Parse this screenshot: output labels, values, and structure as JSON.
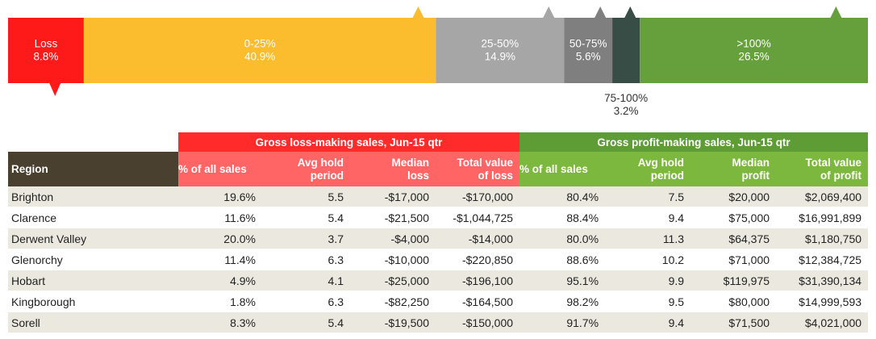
{
  "chart_data": {
    "type": "bar",
    "orientation": "horizontal-stacked",
    "segments": [
      {
        "label": "Loss",
        "value_text": "8.8%",
        "value": 8.8,
        "color": "#ff1a1a",
        "marker": "below"
      },
      {
        "label": "0-25%",
        "value_text": "40.9%",
        "value": 40.9,
        "color": "#fbbd2e",
        "marker": "above"
      },
      {
        "label": "25-50%",
        "value_text": "14.9%",
        "value": 14.9,
        "color": "#a6a6a6",
        "marker": "above"
      },
      {
        "label": "50-75%",
        "value_text": "5.6%",
        "value": 5.6,
        "color": "#7f7f7f",
        "marker": "above"
      },
      {
        "label": "75-100%",
        "value_text": "3.2%",
        "value": 3.2,
        "color": "#374d46",
        "marker": "above",
        "label_outside": true
      },
      {
        "label": ">100%",
        "value_text": "26.5%",
        "value": 26.5,
        "color": "#66a03c",
        "marker": "above"
      }
    ]
  },
  "table": {
    "loss_group_title": "Gross loss-making sales, Jun-15 qtr",
    "profit_group_title": "Gross profit-making sales, Jun-15 qtr",
    "region_header": "Region",
    "loss_headers": [
      [
        "% of all sales"
      ],
      [
        "Avg  hold",
        "period"
      ],
      [
        "Median",
        "loss"
      ],
      [
        "Total value",
        "of loss"
      ]
    ],
    "profit_headers": [
      [
        "% of all sales"
      ],
      [
        "Avg  hold",
        "period"
      ],
      [
        "Median",
        "profit"
      ],
      [
        "Total value",
        "of profit"
      ]
    ],
    "rows": [
      {
        "region": "Brighton",
        "loss_pct": "19.6%",
        "loss_hold": "5.5",
        "loss_median": "-$17,000",
        "loss_total": "-$170,000",
        "profit_pct": "80.4%",
        "profit_hold": "7.5",
        "profit_median": "$20,000",
        "profit_total": "$2,069,400"
      },
      {
        "region": "Clarence",
        "loss_pct": "11.6%",
        "loss_hold": "5.4",
        "loss_median": "-$21,500",
        "loss_total": "-$1,044,725",
        "profit_pct": "88.4%",
        "profit_hold": "9.4",
        "profit_median": "$75,000",
        "profit_total": "$16,991,899"
      },
      {
        "region": "Derwent Valley",
        "loss_pct": "20.0%",
        "loss_hold": "3.7",
        "loss_median": "-$4,000",
        "loss_total": "-$14,000",
        "profit_pct": "80.0%",
        "profit_hold": "11.3",
        "profit_median": "$64,375",
        "profit_total": "$1,180,750"
      },
      {
        "region": "Glenorchy",
        "loss_pct": "11.4%",
        "loss_hold": "6.3",
        "loss_median": "-$10,000",
        "loss_total": "-$220,850",
        "profit_pct": "88.6%",
        "profit_hold": "10.2",
        "profit_median": "$71,000",
        "profit_total": "$12,384,725"
      },
      {
        "region": "Hobart",
        "loss_pct": "4.9%",
        "loss_hold": "4.1",
        "loss_median": "-$25,000",
        "loss_total": "-$196,100",
        "profit_pct": "95.1%",
        "profit_hold": "9.9",
        "profit_median": "$119,975",
        "profit_total": "$31,390,134"
      },
      {
        "region": "Kingborough",
        "loss_pct": "1.8%",
        "loss_hold": "6.3",
        "loss_median": "-$82,250",
        "loss_total": "-$164,500",
        "profit_pct": "98.2%",
        "profit_hold": "9.5",
        "profit_median": "$80,000",
        "profit_total": "$14,999,593"
      },
      {
        "region": "Sorell",
        "loss_pct": "8.3%",
        "loss_hold": "5.4",
        "loss_median": "-$19,500",
        "loss_total": "-$150,000",
        "profit_pct": "91.7%",
        "profit_hold": "9.4",
        "profit_median": "$71,500",
        "profit_total": "$4,021,000"
      }
    ]
  }
}
